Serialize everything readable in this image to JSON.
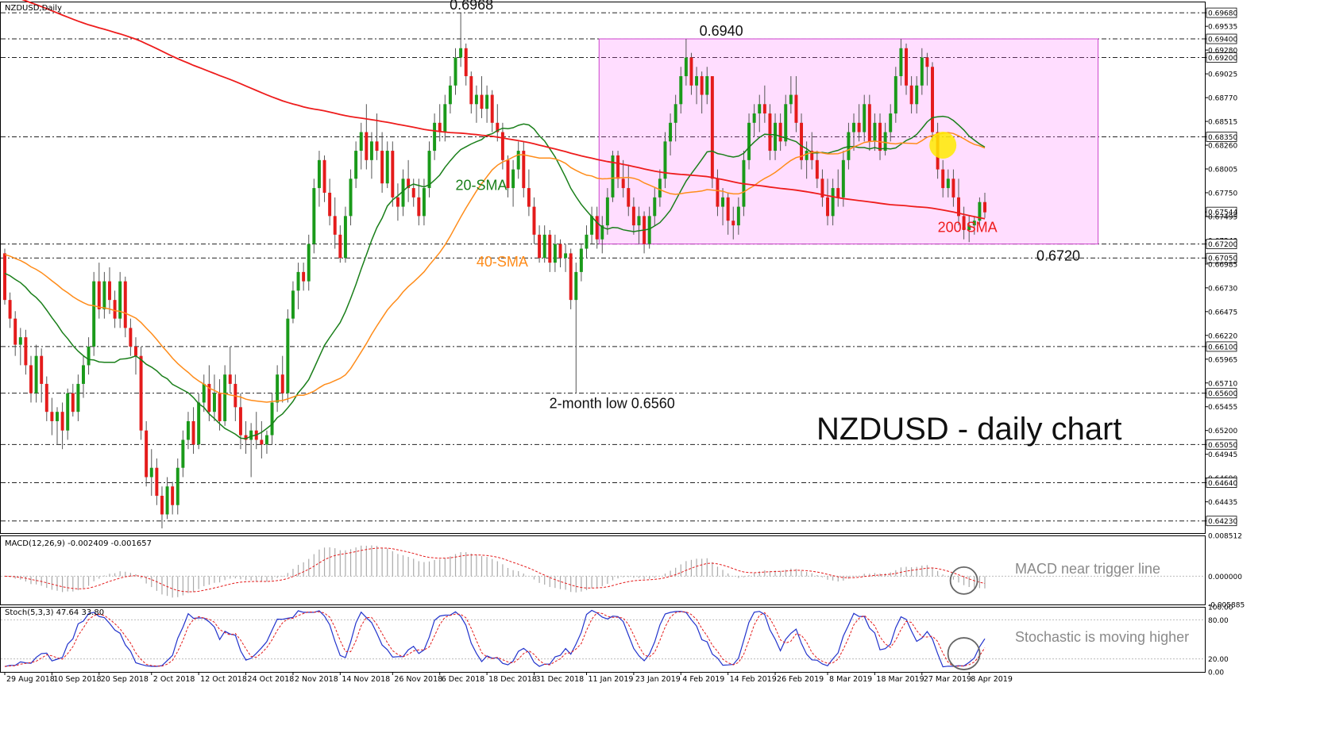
{
  "chart_data": [
    {
      "type": "candlestick",
      "header": "NZDUSD,Daily",
      "title": "NZDUSD - daily chart",
      "ylim": [
        0.641,
        0.698
      ],
      "y_ticks": [
        "0.69680",
        "0.69535",
        "0.69400",
        "0.69280",
        "0.69200",
        "0.69025",
        "0.68770",
        "0.68515",
        "0.68350",
        "0.68260",
        "0.68005",
        "0.67750",
        "0.67544",
        "0.67495",
        "0.67240",
        "0.67200",
        "0.67050",
        "0.66985",
        "0.66730",
        "0.66475",
        "0.66220",
        "0.66100",
        "0.65965",
        "0.65710",
        "0.65600",
        "0.65455",
        "0.65200",
        "0.65050",
        "0.64945",
        "0.64690",
        "0.64640",
        "0.64435",
        "0.64230"
      ],
      "highlighted_levels": [
        "0.69680",
        "0.69400",
        "0.69200",
        "0.68350",
        "0.67544",
        "0.67200",
        "0.67050",
        "0.66100",
        "0.65600",
        "0.65050",
        "0.64640",
        "0.64230"
      ],
      "dashed_levels": [
        0.6968,
        0.694,
        0.692,
        0.6835,
        0.672,
        0.6705,
        0.661,
        0.656,
        0.6505,
        0.6464,
        0.6423
      ],
      "current_price": "0.67544",
      "x_labels": [
        "29 Aug 2018",
        "10 Sep 2018",
        "20 Sep 2018",
        "2 Oct 2018",
        "12 Oct 2018",
        "24 Oct 2018",
        "2 Nov 2018",
        "14 Nov 2018",
        "26 Nov 2018",
        "6 Dec 2018",
        "18 Dec 2018",
        "31 Dec 2018",
        "11 Jan 2019",
        "23 Jan 2019",
        "4 Feb 2019",
        "14 Feb 2019",
        "26 Feb 2019",
        "8 Mar 2019",
        "18 Mar 2019",
        "27 Mar 2019",
        "8 Apr 2019"
      ],
      "range_box": {
        "from_bar": 114,
        "to_bar": 208,
        "low": 0.672,
        "high": 0.694
      },
      "annotations": [
        {
          "text": "0.6968",
          "bar": 87,
          "price": 0.6968
        },
        {
          "text": "0.6940",
          "bar": 138,
          "price": 0.694
        },
        {
          "text": "0.6720",
          "bar": 202,
          "price": 0.672
        },
        {
          "text": "2-month low 0.6560",
          "bar": 113,
          "price": 0.656
        }
      ],
      "series": [
        {
          "name": "20-SMA",
          "color": "#1a7f1a"
        },
        {
          "name": "40-SMA",
          "color": "#ff8c1a"
        },
        {
          "name": "200-SMA",
          "color": "#ee1c1c"
        }
      ],
      "candles": [
        [
          0.671,
          0.6715,
          0.6655,
          0.666
        ],
        [
          0.666,
          0.6668,
          0.663,
          0.664
        ],
        [
          0.664,
          0.6648,
          0.66,
          0.6612
        ],
        [
          0.6612,
          0.663,
          0.659,
          0.662
        ],
        [
          0.662,
          0.6628,
          0.658,
          0.659
        ],
        [
          0.659,
          0.66,
          0.655,
          0.656
        ],
        [
          0.656,
          0.6612,
          0.655,
          0.66
        ],
        [
          0.66,
          0.6608,
          0.655,
          0.657
        ],
        [
          0.657,
          0.6578,
          0.653,
          0.654
        ],
        [
          0.654,
          0.6555,
          0.6515,
          0.653
        ],
        [
          0.653,
          0.6545,
          0.6505,
          0.654
        ],
        [
          0.654,
          0.655,
          0.65,
          0.652
        ],
        [
          0.652,
          0.6565,
          0.651,
          0.656
        ],
        [
          0.656,
          0.657,
          0.6535,
          0.654
        ],
        [
          0.654,
          0.658,
          0.653,
          0.657
        ],
        [
          0.657,
          0.66,
          0.6555,
          0.659
        ],
        [
          0.659,
          0.662,
          0.658,
          0.661
        ],
        [
          0.661,
          0.669,
          0.66,
          0.668
        ],
        [
          0.668,
          0.67,
          0.664,
          0.665
        ],
        [
          0.665,
          0.669,
          0.664,
          0.668
        ],
        [
          0.668,
          0.6695,
          0.6645,
          0.666
        ],
        [
          0.666,
          0.667,
          0.663,
          0.664
        ],
        [
          0.664,
          0.669,
          0.663,
          0.668
        ],
        [
          0.668,
          0.6685,
          0.662,
          0.663
        ],
        [
          0.663,
          0.664,
          0.66,
          0.661
        ],
        [
          0.661,
          0.662,
          0.658,
          0.66
        ],
        [
          0.66,
          0.661,
          0.651,
          0.652
        ],
        [
          0.652,
          0.653,
          0.646,
          0.647
        ],
        [
          0.647,
          0.65,
          0.645,
          0.648
        ],
        [
          0.648,
          0.649,
          0.644,
          0.645
        ],
        [
          0.645,
          0.646,
          0.6415,
          0.643
        ],
        [
          0.643,
          0.647,
          0.6425,
          0.646
        ],
        [
          0.646,
          0.6465,
          0.643,
          0.644
        ],
        [
          0.644,
          0.649,
          0.643,
          0.648
        ],
        [
          0.648,
          0.652,
          0.647,
          0.651
        ],
        [
          0.651,
          0.654,
          0.65,
          0.653
        ],
        [
          0.653,
          0.6545,
          0.6495,
          0.6505
        ],
        [
          0.6505,
          0.656,
          0.65,
          0.655
        ],
        [
          0.655,
          0.658,
          0.654,
          0.657
        ],
        [
          0.657,
          0.659,
          0.653,
          0.654
        ],
        [
          0.654,
          0.658,
          0.653,
          0.656
        ],
        [
          0.656,
          0.6575,
          0.652,
          0.653
        ],
        [
          0.653,
          0.659,
          0.6525,
          0.658
        ],
        [
          0.658,
          0.661,
          0.656,
          0.657
        ],
        [
          0.657,
          0.658,
          0.653,
          0.6545
        ],
        [
          0.6545,
          0.656,
          0.65,
          0.6515
        ],
        [
          0.6515,
          0.653,
          0.6495,
          0.651
        ],
        [
          0.651,
          0.6528,
          0.647,
          0.652
        ],
        [
          0.652,
          0.654,
          0.65,
          0.651
        ],
        [
          0.651,
          0.653,
          0.649,
          0.6505
        ],
        [
          0.6505,
          0.652,
          0.6495,
          0.6515
        ],
        [
          0.6515,
          0.656,
          0.6505,
          0.655
        ],
        [
          0.655,
          0.659,
          0.654,
          0.658
        ],
        [
          0.658,
          0.66,
          0.655,
          0.656
        ],
        [
          0.656,
          0.665,
          0.655,
          0.664
        ],
        [
          0.664,
          0.668,
          0.6635,
          0.667
        ],
        [
          0.667,
          0.67,
          0.665,
          0.669
        ],
        [
          0.669,
          0.67,
          0.667,
          0.668
        ],
        [
          0.668,
          0.673,
          0.667,
          0.672
        ],
        [
          0.672,
          0.679,
          0.671,
          0.678
        ],
        [
          0.678,
          0.682,
          0.676,
          0.681
        ],
        [
          0.681,
          0.6815,
          0.6765,
          0.6775
        ],
        [
          0.6775,
          0.679,
          0.674,
          0.675
        ],
        [
          0.675,
          0.677,
          0.6715,
          0.673
        ],
        [
          0.673,
          0.674,
          0.67,
          0.6705
        ],
        [
          0.6705,
          0.676,
          0.67,
          0.675
        ],
        [
          0.675,
          0.68,
          0.674,
          0.679
        ],
        [
          0.679,
          0.683,
          0.678,
          0.682
        ],
        [
          0.682,
          0.685,
          0.68,
          0.684
        ],
        [
          0.684,
          0.687,
          0.68,
          0.681
        ],
        [
          0.681,
          0.684,
          0.679,
          0.683
        ],
        [
          0.683,
          0.686,
          0.681,
          0.682
        ],
        [
          0.682,
          0.684,
          0.6775,
          0.6785
        ],
        [
          0.6785,
          0.683,
          0.678,
          0.682
        ],
        [
          0.682,
          0.683,
          0.676,
          0.677
        ],
        [
          0.677,
          0.6785,
          0.6745,
          0.676
        ],
        [
          0.676,
          0.68,
          0.675,
          0.679
        ],
        [
          0.679,
          0.681,
          0.6765,
          0.678
        ],
        [
          0.678,
          0.679,
          0.676,
          0.677
        ],
        [
          0.677,
          0.679,
          0.674,
          0.675
        ],
        [
          0.675,
          0.679,
          0.674,
          0.678
        ],
        [
          0.678,
          0.683,
          0.677,
          0.682
        ],
        [
          0.682,
          0.686,
          0.681,
          0.685
        ],
        [
          0.685,
          0.687,
          0.683,
          0.684
        ],
        [
          0.684,
          0.688,
          0.683,
          0.687
        ],
        [
          0.687,
          0.69,
          0.686,
          0.689
        ],
        [
          0.689,
          0.693,
          0.688,
          0.692
        ],
        [
          0.692,
          0.6968,
          0.691,
          0.693
        ],
        [
          0.693,
          0.6935,
          0.689,
          0.69
        ],
        [
          0.69,
          0.6905,
          0.686,
          0.687
        ],
        [
          0.687,
          0.689,
          0.685,
          0.688
        ],
        [
          0.688,
          0.69,
          0.6855,
          0.6865
        ],
        [
          0.6865,
          0.689,
          0.685,
          0.688
        ],
        [
          0.688,
          0.6885,
          0.684,
          0.685
        ],
        [
          0.685,
          0.687,
          0.683,
          0.684
        ],
        [
          0.684,
          0.685,
          0.68,
          0.681
        ],
        [
          0.681,
          0.6815,
          0.677,
          0.678
        ],
        [
          0.678,
          0.681,
          0.676,
          0.68
        ],
        [
          0.68,
          0.683,
          0.679,
          0.682
        ],
        [
          0.682,
          0.683,
          0.677,
          0.678
        ],
        [
          0.678,
          0.68,
          0.675,
          0.676
        ],
        [
          0.676,
          0.677,
          0.672,
          0.673
        ],
        [
          0.673,
          0.674,
          0.67,
          0.6705
        ],
        [
          0.6705,
          0.674,
          0.67,
          0.673
        ],
        [
          0.673,
          0.6735,
          0.669,
          0.67
        ],
        [
          0.67,
          0.673,
          0.669,
          0.672
        ],
        [
          0.672,
          0.6725,
          0.6695,
          0.6705
        ],
        [
          0.6705,
          0.672,
          0.669,
          0.671
        ],
        [
          0.671,
          0.6715,
          0.665,
          0.666
        ],
        [
          0.666,
          0.67,
          0.656,
          0.669
        ],
        [
          0.669,
          0.672,
          0.668,
          0.6715
        ],
        [
          0.6715,
          0.674,
          0.6705,
          0.673
        ],
        [
          0.673,
          0.676,
          0.672,
          0.675
        ],
        [
          0.675,
          0.676,
          0.6715,
          0.6725
        ],
        [
          0.6725,
          0.675,
          0.671,
          0.674
        ],
        [
          0.674,
          0.678,
          0.673,
          0.677
        ],
        [
          0.677,
          0.682,
          0.6765,
          0.6815
        ],
        [
          0.6815,
          0.682,
          0.678,
          0.679
        ],
        [
          0.679,
          0.681,
          0.677,
          0.678
        ],
        [
          0.678,
          0.6805,
          0.675,
          0.676
        ],
        [
          0.676,
          0.677,
          0.673,
          0.674
        ],
        [
          0.674,
          0.676,
          0.672,
          0.675
        ],
        [
          0.675,
          0.6755,
          0.671,
          0.672
        ],
        [
          0.672,
          0.676,
          0.6715,
          0.675
        ],
        [
          0.675,
          0.678,
          0.674,
          0.677
        ],
        [
          0.677,
          0.68,
          0.676,
          0.679
        ],
        [
          0.679,
          0.684,
          0.678,
          0.683
        ],
        [
          0.683,
          0.686,
          0.6815,
          0.685
        ],
        [
          0.685,
          0.688,
          0.683,
          0.687
        ],
        [
          0.687,
          0.691,
          0.686,
          0.69
        ],
        [
          0.69,
          0.694,
          0.689,
          0.692
        ],
        [
          0.692,
          0.6925,
          0.688,
          0.689
        ],
        [
          0.689,
          0.691,
          0.687,
          0.69
        ],
        [
          0.69,
          0.6905,
          0.686,
          0.688
        ],
        [
          0.688,
          0.691,
          0.687,
          0.69
        ],
        [
          0.69,
          0.69,
          0.678,
          0.679
        ],
        [
          0.679,
          0.68,
          0.675,
          0.676
        ],
        [
          0.676,
          0.678,
          0.674,
          0.677
        ],
        [
          0.677,
          0.6775,
          0.673,
          0.6745
        ],
        [
          0.6745,
          0.676,
          0.6725,
          0.674
        ],
        [
          0.674,
          0.677,
          0.673,
          0.676
        ],
        [
          0.676,
          0.682,
          0.675,
          0.681
        ],
        [
          0.681,
          0.686,
          0.68,
          0.685
        ],
        [
          0.685,
          0.687,
          0.6835,
          0.686
        ],
        [
          0.686,
          0.688,
          0.684,
          0.687
        ],
        [
          0.687,
          0.689,
          0.685,
          0.686
        ],
        [
          0.686,
          0.687,
          0.681,
          0.682
        ],
        [
          0.682,
          0.686,
          0.681,
          0.685
        ],
        [
          0.685,
          0.686,
          0.682,
          0.683
        ],
        [
          0.683,
          0.688,
          0.6825,
          0.687
        ],
        [
          0.687,
          0.69,
          0.686,
          0.688
        ],
        [
          0.688,
          0.69,
          0.684,
          0.685
        ],
        [
          0.685,
          0.686,
          0.68,
          0.681
        ],
        [
          0.681,
          0.683,
          0.679,
          0.682
        ],
        [
          0.682,
          0.684,
          0.68,
          0.681
        ],
        [
          0.681,
          0.682,
          0.678,
          0.679
        ],
        [
          0.679,
          0.68,
          0.676,
          0.677
        ],
        [
          0.677,
          0.679,
          0.674,
          0.675
        ],
        [
          0.675,
          0.679,
          0.674,
          0.678
        ],
        [
          0.678,
          0.68,
          0.676,
          0.677
        ],
        [
          0.677,
          0.682,
          0.676,
          0.681
        ],
        [
          0.681,
          0.685,
          0.68,
          0.684
        ],
        [
          0.684,
          0.686,
          0.682,
          0.685
        ],
        [
          0.685,
          0.687,
          0.683,
          0.684
        ],
        [
          0.684,
          0.688,
          0.683,
          0.687
        ],
        [
          0.687,
          0.688,
          0.682,
          0.683
        ],
        [
          0.683,
          0.686,
          0.682,
          0.685
        ],
        [
          0.685,
          0.686,
          0.681,
          0.682
        ],
        [
          0.682,
          0.685,
          0.6815,
          0.684
        ],
        [
          0.684,
          0.687,
          0.683,
          0.686
        ],
        [
          0.686,
          0.691,
          0.685,
          0.69
        ],
        [
          0.69,
          0.694,
          0.689,
          0.693
        ],
        [
          0.693,
          0.6935,
          0.688,
          0.689
        ],
        [
          0.689,
          0.69,
          0.686,
          0.687
        ],
        [
          0.687,
          0.69,
          0.686,
          0.689
        ],
        [
          0.689,
          0.693,
          0.688,
          0.692
        ],
        [
          0.692,
          0.6925,
          0.689,
          0.691
        ],
        [
          0.691,
          0.6915,
          0.683,
          0.684
        ],
        [
          0.684,
          0.685,
          0.679,
          0.68
        ],
        [
          0.68,
          0.681,
          0.677,
          0.678
        ],
        [
          0.678,
          0.68,
          0.677,
          0.679
        ],
        [
          0.679,
          0.68,
          0.676,
          0.677
        ],
        [
          0.677,
          0.679,
          0.674,
          0.675
        ],
        [
          0.675,
          0.676,
          0.6725,
          0.6735
        ],
        [
          0.6735,
          0.675,
          0.6722,
          0.674
        ],
        [
          0.674,
          0.675,
          0.673,
          0.6745
        ],
        [
          0.6745,
          0.677,
          0.674,
          0.6765
        ],
        [
          0.6765,
          0.6775,
          0.6748,
          0.6754
        ]
      ]
    },
    {
      "type": "macd",
      "label": "MACD(12,26,9) -0.002409 -0.001657",
      "y_ticks": [
        "0.008512",
        "0.000000",
        "-0.005885"
      ],
      "ylim": [
        -0.005885,
        0.008512
      ],
      "note": "MACD near trigger line"
    },
    {
      "type": "stochastic",
      "label": "Stoch(5,3,3) 47.64 33.80",
      "y_ticks": [
        "100.00",
        "80.00",
        "20.00",
        "0.00"
      ],
      "ylim": [
        0,
        100
      ],
      "levels": [
        80,
        20
      ],
      "note": "Stochastic is moving higher"
    }
  ]
}
